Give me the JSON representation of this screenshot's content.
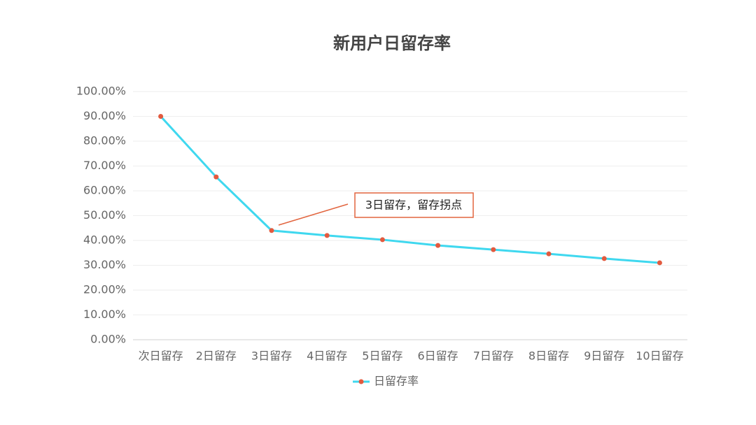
{
  "chart_data": {
    "type": "line",
    "title": "新用户日留存率",
    "categories": [
      "次日留存",
      "2日留存",
      "3日留存",
      "4日留存",
      "5日留存",
      "6日留存",
      "7日留存",
      "8日留存",
      "9日留存",
      "10日留存"
    ],
    "series": [
      {
        "name": "日留存率",
        "color": "#3fd8ef",
        "marker_color": "#e25a3f",
        "values": [
          90,
          65.6,
          44,
          42,
          40.3,
          38,
          36.3,
          34.6,
          32.7,
          31
        ]
      }
    ],
    "ylim": [
      0,
      100
    ],
    "yticks": [
      {
        "value": 0,
        "label": "0.00%"
      },
      {
        "value": 10,
        "label": "10.00%"
      },
      {
        "value": 20,
        "label": "20.00%"
      },
      {
        "value": 30,
        "label": "30.00%"
      },
      {
        "value": 40,
        "label": "40.00%"
      },
      {
        "value": 50,
        "label": "50.00%"
      },
      {
        "value": 60,
        "label": "60.00%"
      },
      {
        "value": 70,
        "label": "70.00%"
      },
      {
        "value": 80,
        "label": "80.00%"
      },
      {
        "value": 90,
        "label": "90.00%"
      },
      {
        "value": 100,
        "label": "100.00%"
      }
    ],
    "grid": true,
    "legend": "bottom",
    "annotations": [
      {
        "text": "3日留存，留存拐点"
      }
    ]
  }
}
